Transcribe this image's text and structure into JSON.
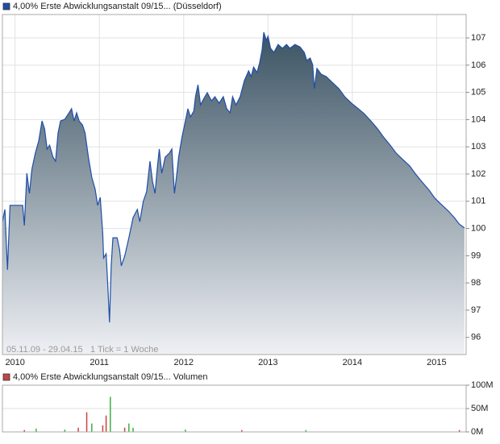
{
  "chart_data": [
    {
      "type": "area",
      "title": "4,00% Erste Abwicklungsanstalt 09/15... (Düsseldorf)",
      "color": "#1f4ea8",
      "annotations": [
        "05.11.09 - 29.04.15",
        "1 Tick = 1 Woche"
      ],
      "grid": true,
      "xlim": [
        2009.85,
        2015.35
      ],
      "xticks": [
        2010,
        2011,
        2012,
        2013,
        2014,
        2015
      ],
      "ylim": [
        95.37,
        107.86
      ],
      "yticks": [
        96,
        97,
        98,
        99,
        100,
        101,
        102,
        103,
        104,
        105,
        106,
        107
      ],
      "x": [
        2009.85,
        2009.88,
        2009.91,
        2009.94,
        2010.09,
        2010.11,
        2010.14,
        2010.17,
        2010.2,
        2010.24,
        2010.28,
        2010.32,
        2010.35,
        2010.38,
        2010.41,
        2010.45,
        2010.48,
        2010.51,
        2010.54,
        2010.59,
        2010.64,
        2010.67,
        2010.7,
        2010.73,
        2010.76,
        2010.8,
        2010.83,
        2010.87,
        2010.91,
        2010.95,
        2010.98,
        2011.01,
        2011.04,
        2011.05,
        2011.08,
        2011.1,
        2011.12,
        2011.14,
        2011.16,
        2011.21,
        2011.24,
        2011.26,
        2011.3,
        2011.35,
        2011.4,
        2011.45,
        2011.48,
        2011.52,
        2011.56,
        2011.6,
        2011.63,
        2011.66,
        2011.69,
        2011.71,
        2011.74,
        2011.78,
        2011.83,
        2011.86,
        2011.89,
        2011.92,
        2011.94,
        2011.98,
        2012.02,
        2012.05,
        2012.08,
        2012.12,
        2012.14,
        2012.17,
        2012.2,
        2012.24,
        2012.28,
        2012.33,
        2012.37,
        2012.42,
        2012.47,
        2012.51,
        2012.55,
        2012.58,
        2012.62,
        2012.67,
        2012.72,
        2012.77,
        2012.8,
        2012.83,
        2012.87,
        2012.9,
        2012.93,
        2012.95,
        2012.98,
        2013.0,
        2013.03,
        2013.07,
        2013.12,
        2013.17,
        2013.22,
        2013.26,
        2013.32,
        2013.38,
        2013.43,
        2013.46,
        2013.5,
        2013.53,
        2013.55,
        2013.58,
        2013.63,
        2013.69,
        2013.76,
        2013.84,
        2013.91,
        2013.99,
        2014.07,
        2014.14,
        2014.22,
        2014.3,
        2014.37,
        2014.45,
        2014.52,
        2014.6,
        2014.68,
        2014.75,
        2014.83,
        2014.91,
        2014.98,
        2015.06,
        2015.14,
        2015.21,
        2015.27,
        2015.33
      ],
      "values": [
        100.25,
        100.7,
        98.48,
        100.85,
        100.85,
        100.11,
        102.03,
        101.29,
        102.18,
        102.77,
        103.21,
        103.95,
        103.66,
        102.92,
        103.06,
        102.62,
        102.47,
        103.51,
        103.95,
        104.01,
        104.25,
        104.4,
        103.95,
        104.25,
        103.95,
        103.8,
        103.51,
        102.62,
        101.88,
        101.44,
        100.85,
        101.14,
        99.81,
        98.92,
        99.07,
        97.89,
        96.55,
        98.63,
        99.66,
        99.66,
        99.22,
        98.63,
        98.98,
        99.66,
        100.4,
        100.7,
        100.25,
        100.99,
        101.35,
        102.47,
        101.73,
        101.29,
        102.32,
        102.92,
        102.03,
        102.62,
        102.77,
        102.92,
        101.29,
        102.03,
        102.62,
        103.36,
        103.95,
        104.4,
        104.1,
        104.31,
        104.84,
        105.28,
        104.54,
        104.78,
        104.99,
        104.69,
        104.84,
        104.6,
        104.84,
        104.4,
        104.25,
        104.84,
        104.54,
        104.84,
        105.43,
        105.79,
        105.58,
        105.93,
        105.73,
        106.08,
        106.56,
        107.21,
        106.91,
        107.06,
        106.62,
        106.47,
        106.76,
        106.62,
        106.76,
        106.62,
        106.76,
        106.67,
        106.47,
        106.17,
        106.26,
        106.02,
        105.14,
        105.88,
        105.67,
        105.58,
        105.37,
        105.14,
        104.84,
        104.6,
        104.4,
        104.22,
        103.95,
        103.66,
        103.36,
        103.06,
        102.77,
        102.53,
        102.3,
        102.0,
        101.7,
        101.41,
        101.11,
        100.87,
        100.64,
        100.4,
        100.16,
        100.02
      ]
    },
    {
      "type": "bar",
      "title": "4,00% Erste Abwicklungsanstalt 09/15... Volumen",
      "color": "#c04848",
      "grid": true,
      "xlim": [
        2009.85,
        2015.35
      ],
      "ylim": [
        0,
        100000000
      ],
      "yticks": [
        {
          "value": 0,
          "label": "0M"
        },
        {
          "value": 50000000,
          "label": "50M"
        },
        {
          "value": 100000000,
          "label": "100M"
        }
      ],
      "series": [
        {
          "color": "#3cb043",
          "x": [
            2010.25,
            2010.59,
            2010.91,
            2011.13,
            2011.35,
            2011.4,
            2012.02,
            2013.45
          ],
          "values": [
            7000000,
            5000000,
            18000000,
            75000000,
            18000000,
            9000000,
            5000000,
            4000000
          ]
        },
        {
          "color": "#d04040",
          "x": [
            2010.11,
            2010.75,
            2010.85,
            2011.04,
            2011.08,
            2011.3,
            2012.69,
            2015.27
          ],
          "values": [
            4000000,
            9000000,
            42000000,
            14000000,
            35000000,
            9000000,
            4000000,
            4000000
          ]
        }
      ]
    }
  ]
}
